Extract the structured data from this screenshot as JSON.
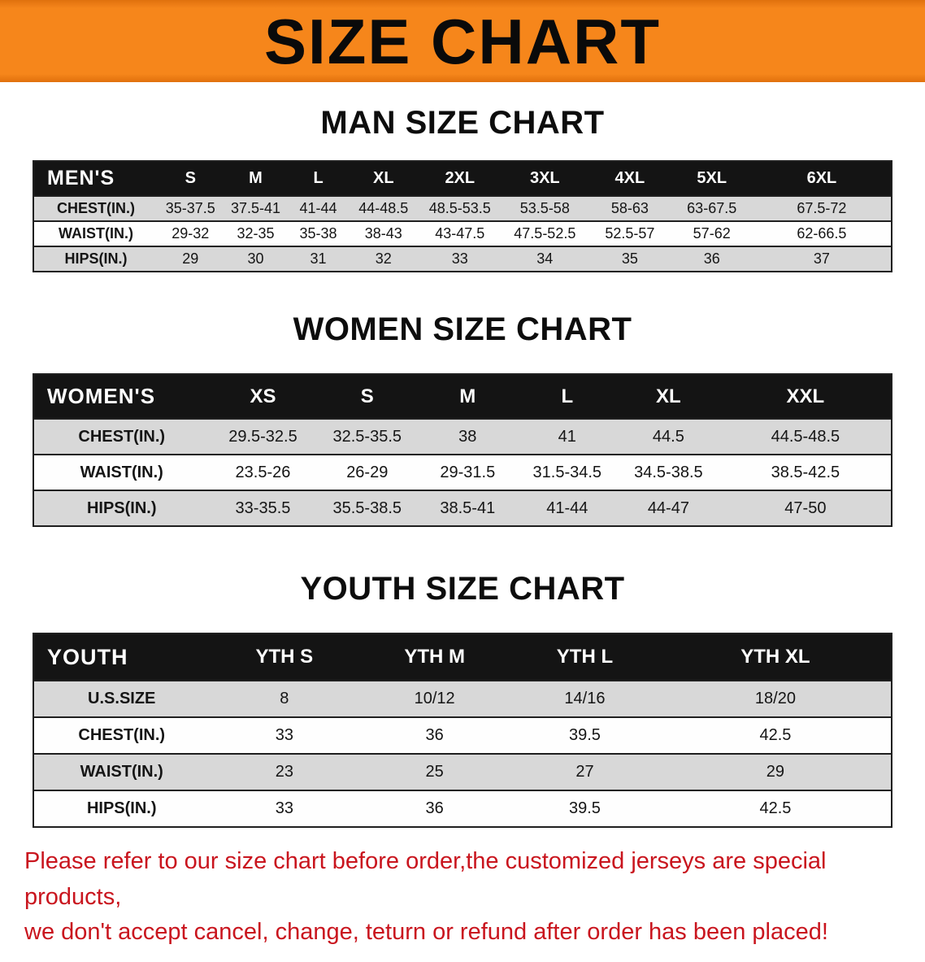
{
  "banner": {
    "title": "SIZE CHART"
  },
  "men": {
    "heading": "MAN SIZE CHART",
    "table": {
      "header": [
        "MEN'S",
        "S",
        "M",
        "L",
        "XL",
        "2XL",
        "3XL",
        "4XL",
        "5XL",
        "6XL"
      ],
      "rows": [
        [
          "CHEST(IN.)",
          "35-37.5",
          "37.5-41",
          "41-44",
          "44-48.5",
          "48.5-53.5",
          "53.5-58",
          "58-63",
          "63-67.5",
          "67.5-72"
        ],
        [
          "WAIST(IN.)",
          "29-32",
          "32-35",
          "35-38",
          "38-43",
          "43-47.5",
          "47.5-52.5",
          "52.5-57",
          "57-62",
          "62-66.5"
        ],
        [
          "HIPS(IN.)",
          "29",
          "30",
          "31",
          "32",
          "33",
          "34",
          "35",
          "36",
          "37"
        ]
      ]
    }
  },
  "women": {
    "heading": "WOMEN SIZE CHART",
    "table": {
      "header": [
        "WOMEN'S",
        "XS",
        "S",
        "M",
        "L",
        "XL",
        "XXL"
      ],
      "rows": [
        [
          "CHEST(IN.)",
          "29.5-32.5",
          "32.5-35.5",
          "38",
          "41",
          "44.5",
          "44.5-48.5"
        ],
        [
          "WAIST(IN.)",
          "23.5-26",
          "26-29",
          "29-31.5",
          "31.5-34.5",
          "34.5-38.5",
          "38.5-42.5"
        ],
        [
          "HIPS(IN.)",
          "33-35.5",
          "35.5-38.5",
          "38.5-41",
          "41-44",
          "44-47",
          "47-50"
        ]
      ]
    }
  },
  "youth": {
    "heading": "YOUTH SIZE CHART",
    "table": {
      "header": [
        "YOUTH",
        "YTH S",
        "YTH M",
        "YTH L",
        "YTH XL"
      ],
      "rows": [
        [
          "U.S.SIZE",
          "8",
          "10/12",
          "14/16",
          "18/20"
        ],
        [
          "CHEST(IN.)",
          "33",
          "36",
          "39.5",
          "42.5"
        ],
        [
          "WAIST(IN.)",
          "23",
          "25",
          "27",
          "29"
        ],
        [
          "HIPS(IN.)",
          "33",
          "36",
          "39.5",
          "42.5"
        ]
      ]
    }
  },
  "disclaimer": {
    "line1": "Please refer to our size chart before order,the customized jerseys are special products,",
    "line2": "we don't accept cancel, change, teturn or refund after order has been placed!"
  },
  "colors": {
    "banner_bg": "#F6861B",
    "banner_bg_edge": "#E0710D",
    "header_bg": "#141414",
    "header_text": "#FFFFFF",
    "row_stripe": "#D8D8D8",
    "row_alt": "#FEFEFE",
    "border_color": "#1F1F1F",
    "disclaimer_text": "#C9151E",
    "heading_text": "#0D0D0D"
  }
}
